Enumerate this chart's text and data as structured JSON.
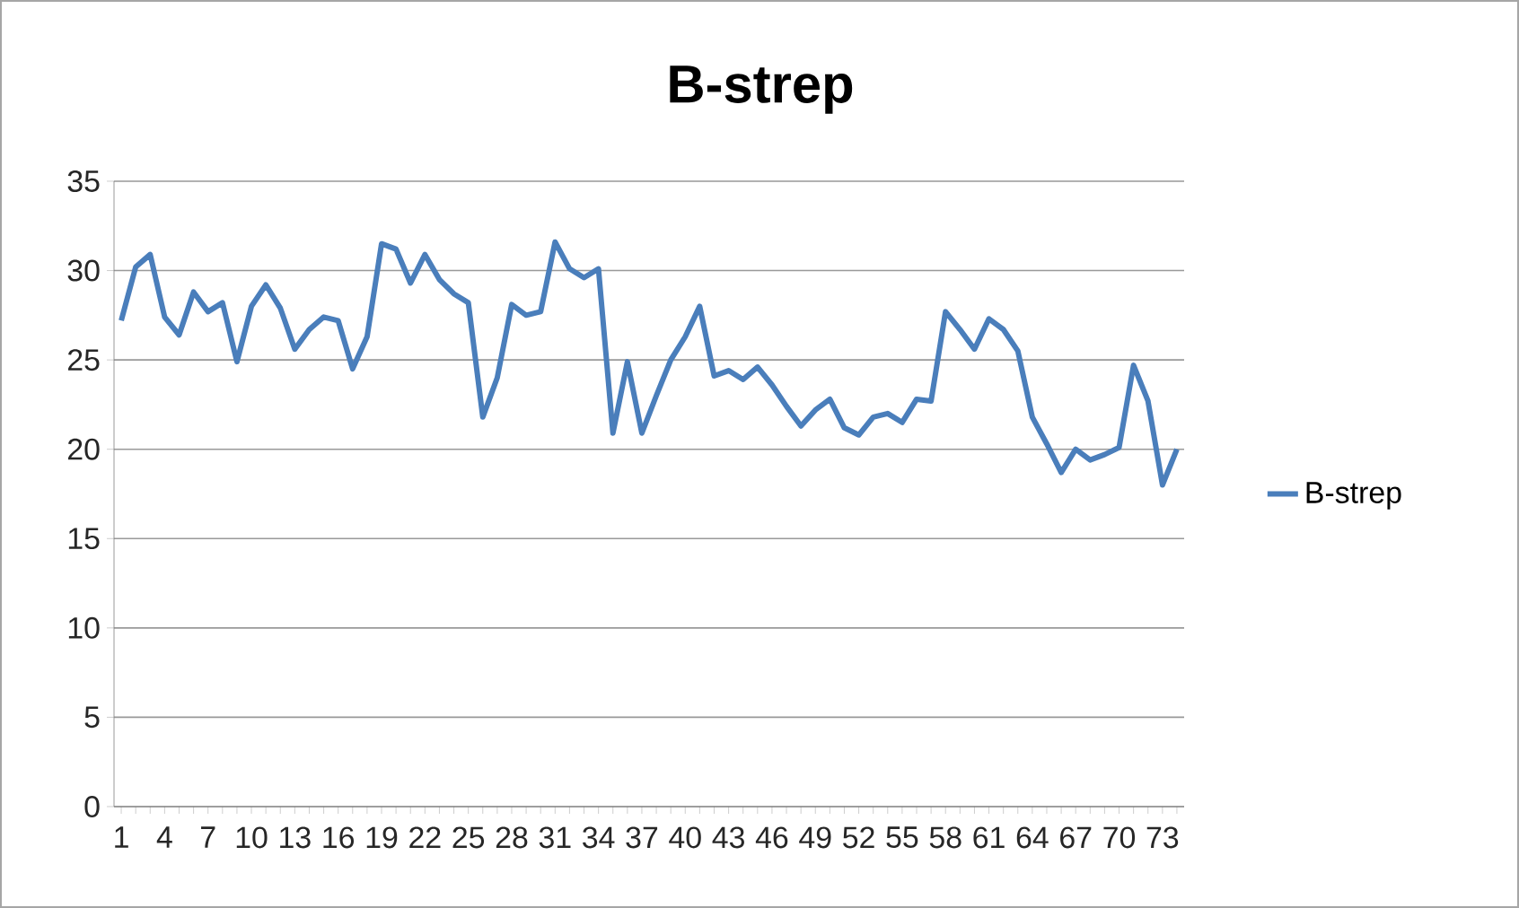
{
  "chart_data": {
    "type": "line",
    "title": "B-strep",
    "categories": [
      "1",
      null,
      null,
      "4",
      null,
      null,
      "7",
      null,
      null,
      "10",
      null,
      null,
      "13",
      null,
      null,
      "16",
      null,
      null,
      "19",
      null,
      null,
      "22",
      null,
      null,
      "25",
      null,
      null,
      "28",
      null,
      null,
      "31",
      null,
      null,
      "34",
      null,
      null,
      "37",
      null,
      null,
      "40",
      null,
      null,
      "43",
      null,
      null,
      "46",
      null,
      null,
      "49",
      null,
      null,
      "52",
      null,
      null,
      "55",
      null,
      null,
      "58",
      null,
      null,
      "61",
      null,
      null,
      "64",
      null,
      null,
      "67",
      null,
      null,
      "70",
      null,
      null,
      "73",
      null
    ],
    "series": [
      {
        "name": "B-strep",
        "color": "#4a7ebb",
        "values": [
          27.2,
          30.2,
          30.9,
          27.4,
          26.4,
          28.8,
          27.7,
          28.2,
          24.9,
          28.0,
          29.2,
          27.9,
          25.6,
          26.7,
          27.4,
          27.2,
          24.5,
          26.3,
          31.5,
          31.2,
          29.3,
          30.9,
          29.5,
          28.7,
          28.2,
          21.8,
          24.0,
          28.1,
          27.5,
          27.7,
          31.6,
          30.1,
          29.6,
          30.1,
          20.9,
          24.9,
          20.9,
          23.0,
          25.0,
          26.3,
          28.0,
          24.1,
          24.4,
          23.9,
          24.6,
          23.6,
          22.4,
          21.3,
          22.2,
          22.8,
          21.2,
          20.8,
          21.8,
          22.0,
          21.5,
          22.8,
          22.7,
          27.7,
          26.7,
          25.6,
          27.3,
          26.7,
          25.5,
          21.8,
          20.3,
          18.7,
          20.0,
          19.4,
          19.7,
          20.1,
          24.7,
          22.7,
          18.0,
          20.0
        ]
      }
    ],
    "ylim": [
      0,
      35
    ],
    "yticks": [
      0,
      5,
      10,
      15,
      20,
      25,
      30,
      35
    ],
    "grid": "y",
    "legend": "right",
    "marker": "none",
    "line_style": "solid"
  }
}
